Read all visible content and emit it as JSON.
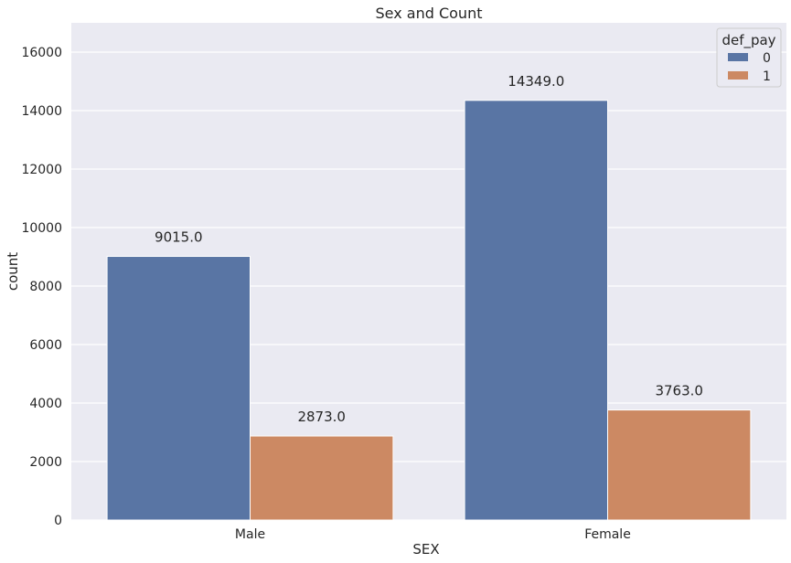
{
  "chart_data": {
    "type": "bar",
    "title": "Sex and Count",
    "xlabel": "SEX",
    "ylabel": "count",
    "categories": [
      "Male",
      "Female"
    ],
    "series": [
      {
        "name": "0",
        "values": [
          9015,
          14349
        ],
        "color": "#5975a4",
        "labels": [
          "9015.0",
          "14349.0"
        ]
      },
      {
        "name": "1",
        "values": [
          2873,
          3763
        ],
        "color": "#cc8963",
        "labels": [
          "2873.0",
          "3763.0"
        ]
      }
    ],
    "ylim": [
      0,
      17000
    ],
    "yticks": [
      0,
      2000,
      4000,
      6000,
      8000,
      10000,
      12000,
      14000,
      16000
    ],
    "legend": {
      "title": "def_pay",
      "position": "top-right"
    },
    "grid": true,
    "background": "#eaeaf2",
    "grid_color": "#ffffff"
  }
}
